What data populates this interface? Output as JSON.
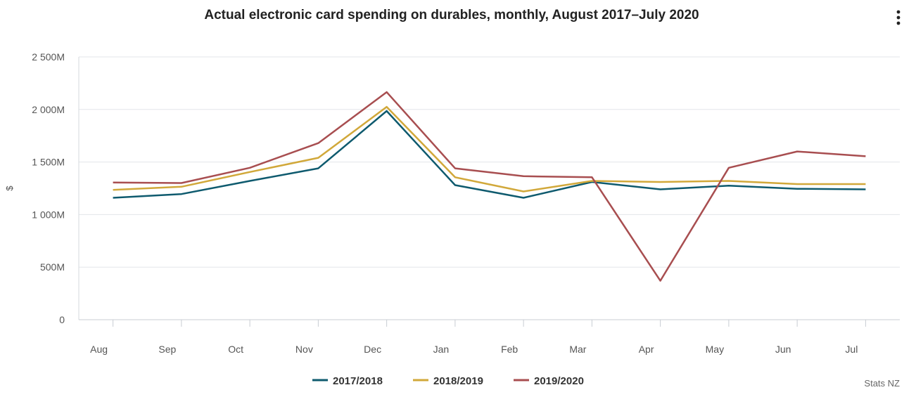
{
  "chart_data": {
    "type": "line",
    "title": "Actual electronic card spending on durables, monthly, August 2017–July 2020",
    "xlabel": "",
    "ylabel": "$",
    "categories": [
      "Aug",
      "Sep",
      "Oct",
      "Nov",
      "Dec",
      "Jan",
      "Feb",
      "Mar",
      "Apr",
      "May",
      "Jun",
      "Jul"
    ],
    "ylim": [
      0,
      2500
    ],
    "y_ticks": [
      0,
      500,
      1000,
      1500,
      2000,
      2500
    ],
    "y_tick_labels": [
      "0",
      "500M",
      "1 000M",
      "1 500M",
      "2 000M",
      "2 500M"
    ],
    "grid": true,
    "legend_position": "bottom",
    "series": [
      {
        "name": "2017/2018",
        "color": "#0e5a6e",
        "values": [
          1160,
          1195,
          1320,
          1440,
          1985,
          1280,
          1160,
          1310,
          1240,
          1275,
          1245,
          1240
        ]
      },
      {
        "name": "2018/2019",
        "color": "#d1a83a",
        "values": [
          1235,
          1265,
          1405,
          1540,
          2025,
          1355,
          1220,
          1320,
          1310,
          1320,
          1290,
          1290
        ]
      },
      {
        "name": "2019/2020",
        "color": "#a84e50",
        "values": [
          1305,
          1300,
          1445,
          1680,
          2165,
          1440,
          1365,
          1355,
          370,
          1445,
          1600,
          1555
        ]
      }
    ],
    "credit": "Stats NZ"
  },
  "menu": {
    "icon": "more-vertical-icon"
  }
}
